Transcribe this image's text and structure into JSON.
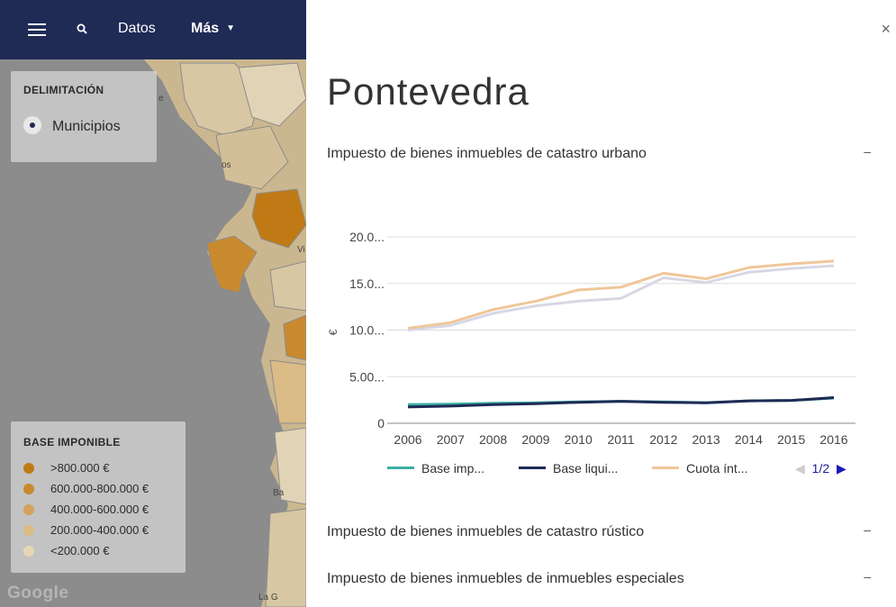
{
  "header": {
    "nav_datos": "Datos",
    "nav_mas": "Más",
    "bg_color": "#1f2a55"
  },
  "delimitacion": {
    "title": "DELIMITACIÓN",
    "option": "Municipios"
  },
  "base_legend": {
    "title": "BASE IMPONIBLE",
    "items": [
      {
        "label": ">800.000 €",
        "color": "#c07a15"
      },
      {
        "label": "600.000-800.000 €",
        "color": "#c98a2f"
      },
      {
        "label": "400.000-600.000 €",
        "color": "#d2a25a"
      },
      {
        "label": "200.000-400.000 €",
        "color": "#dbbb86"
      },
      {
        "label": "<200.000 €",
        "color": "#e7d6b6"
      }
    ]
  },
  "map_labels": [
    "e",
    "os",
    "Vi",
    "Ba",
    "La G"
  ],
  "google_logo": "Google",
  "panel": {
    "title": "Pontevedra",
    "close": "×",
    "sections": [
      {
        "label": "Impuesto de bienes inmuebles de catastro urbano",
        "toggle": "–"
      },
      {
        "label": "Impuesto de bienes inmuebles de catastro rústico",
        "toggle": "–"
      },
      {
        "label": "Impuesto de bienes inmuebles de inmuebles especiales",
        "toggle": "–"
      }
    ]
  },
  "chart_data": {
    "type": "line",
    "ylabel": "€",
    "ylim": [
      0,
      20
    ],
    "yticks": [
      "0",
      "5.00...",
      "10.0...",
      "15.0...",
      "20.0..."
    ],
    "x": [
      "2006",
      "2007",
      "2008",
      "2009",
      "2010",
      "2011",
      "2012",
      "2013",
      "2014",
      "2015",
      "2016"
    ],
    "series": [
      {
        "name": "Base imp...",
        "color": "#3bb0a4",
        "values": [
          2.0,
          2.05,
          2.15,
          2.2,
          2.3,
          2.35,
          2.3,
          2.2,
          2.4,
          2.45,
          2.7
        ]
      },
      {
        "name": "Base liqui...",
        "color": "#1f2a55",
        "values": [
          1.75,
          1.85,
          2.0,
          2.1,
          2.25,
          2.35,
          2.25,
          2.2,
          2.4,
          2.45,
          2.75
        ]
      },
      {
        "name": "Cuota ínt...",
        "color": "#efc79b",
        "values": [
          10.2,
          10.8,
          12.2,
          13.1,
          14.3,
          14.6,
          16.1,
          15.5,
          16.7,
          17.1,
          17.4
        ]
      },
      {
        "name": "",
        "color": "#d7d7e6",
        "values": [
          10.0,
          10.5,
          11.8,
          12.6,
          13.1,
          13.4,
          15.6,
          15.1,
          16.2,
          16.6,
          16.9
        ]
      }
    ],
    "pager": "1/2",
    "grid": true,
    "legend": "bottom"
  }
}
